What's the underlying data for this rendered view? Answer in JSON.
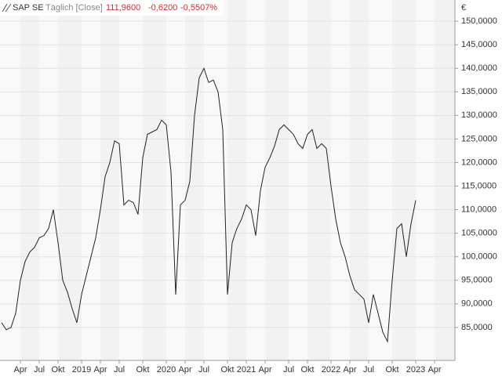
{
  "chart_data": {
    "type": "line",
    "title": "SAP SE",
    "subtitle": "Täglich [Close]",
    "last": "111,9600",
    "change": "-0,6200",
    "change_percent": "-0,5507%",
    "y_unit": "€",
    "categories": [
      null,
      null,
      null,
      null,
      "Apr",
      null,
      null,
      null,
      "Jul",
      null,
      null,
      null,
      "Okt",
      null,
      null,
      null,
      null,
      "2019",
      null,
      null,
      null,
      "Apr",
      null,
      null,
      null,
      "Jul",
      null,
      null,
      null,
      null,
      "Okt",
      null,
      null,
      null,
      null,
      "2020",
      null,
      null,
      null,
      "Apr",
      null,
      null,
      null,
      "Jul",
      null,
      null,
      null,
      null,
      "Okt",
      null,
      null,
      null,
      "2021",
      null,
      null,
      null,
      "Apr",
      null,
      null,
      null,
      null,
      "Jul",
      null,
      null,
      null,
      "Okt",
      null,
      null,
      null,
      null,
      "2022",
      null,
      null,
      null,
      "Apr",
      null,
      null,
      null,
      "Jul",
      null,
      null,
      null,
      null,
      "Okt",
      null,
      null,
      null,
      null,
      "2023",
      null,
      null,
      null,
      "Apr"
    ],
    "values": [
      86,
      84.5,
      85,
      88,
      95,
      99,
      101,
      102,
      104,
      104.5,
      106,
      110,
      103,
      95,
      92.5,
      89,
      86,
      92,
      96,
      100,
      104,
      110,
      117,
      120,
      124.6,
      124,
      111,
      112,
      111.5,
      109,
      121,
      126,
      126.5,
      127,
      129,
      128,
      118,
      92,
      111,
      112,
      116,
      130,
      138,
      140,
      137,
      137.5,
      135,
      127,
      92,
      103,
      106,
      108,
      111,
      110,
      104.5,
      114,
      119,
      121,
      123.5,
      127,
      128,
      127,
      126,
      124,
      123,
      126,
      127,
      123,
      124,
      123,
      115,
      108,
      103,
      100,
      96,
      93,
      92,
      91,
      86,
      92,
      88,
      84,
      82,
      95,
      106,
      107,
      100,
      107,
      112,
      null,
      null,
      null,
      null
    ],
    "color": "#222222",
    "ylim": [
      78,
      154.5
    ],
    "yticks": [
      {
        "value": 85,
        "label": "85,0000"
      },
      {
        "value": 90,
        "label": "90,0000"
      },
      {
        "value": 95,
        "label": "95,0000"
      },
      {
        "value": 100,
        "label": "100,0000"
      },
      {
        "value": 105,
        "label": "105,0000"
      },
      {
        "value": 110,
        "label": "110,0000"
      },
      {
        "value": 115,
        "label": "115,0000"
      },
      {
        "value": 120,
        "label": "120,0000"
      },
      {
        "value": 125,
        "label": "125,0000"
      },
      {
        "value": 130,
        "label": "130,0000"
      },
      {
        "value": 135,
        "label": "135,0000"
      },
      {
        "value": 140,
        "label": "140,0000"
      },
      {
        "value": 145,
        "label": "145,0000"
      },
      {
        "value": 150,
        "label": "150,0000"
      }
    ],
    "grid": true
  }
}
